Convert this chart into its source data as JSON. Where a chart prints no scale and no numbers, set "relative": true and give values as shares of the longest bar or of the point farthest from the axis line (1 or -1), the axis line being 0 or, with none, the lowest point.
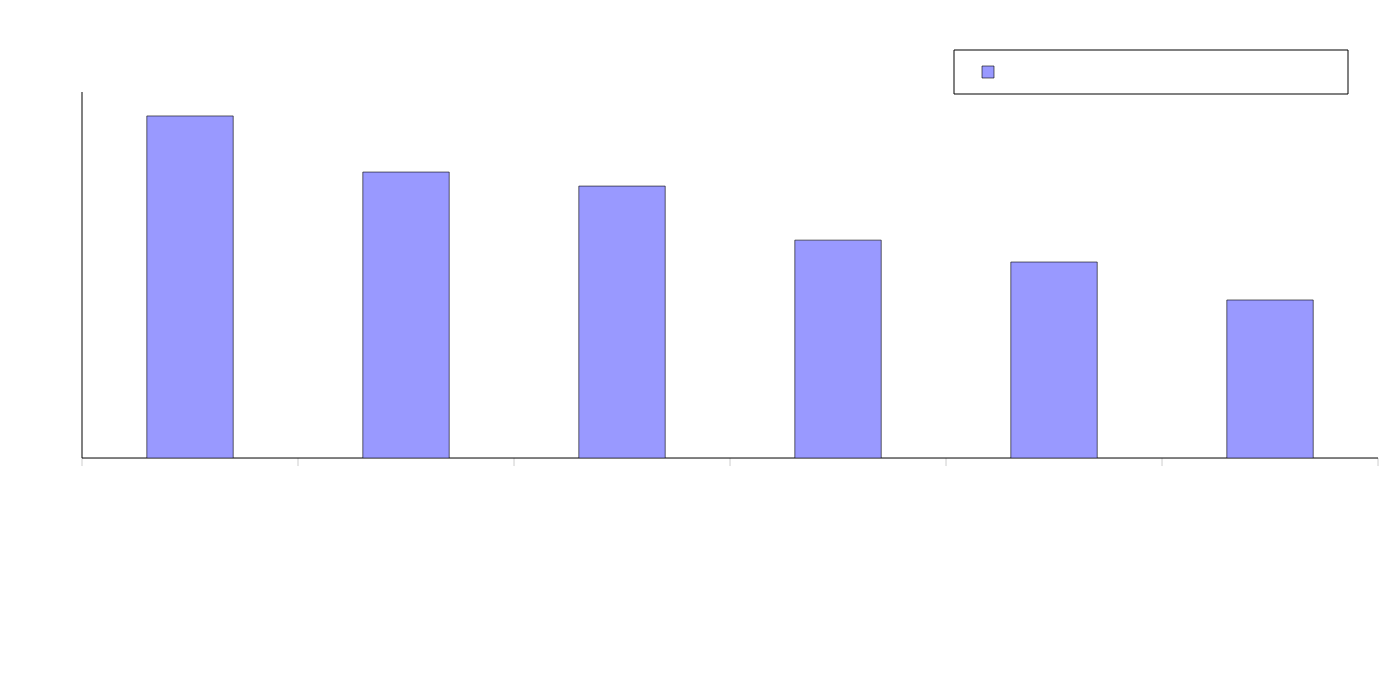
{
  "chart_data": {
    "type": "bar",
    "relative": true,
    "categories": [
      null,
      null,
      null,
      null,
      null,
      null
    ],
    "series": [
      {
        "color": "#9999ff",
        "values": [
          1,
          0.836,
          0.795,
          0.637,
          0.573,
          0.462
        ]
      }
    ]
  }
}
